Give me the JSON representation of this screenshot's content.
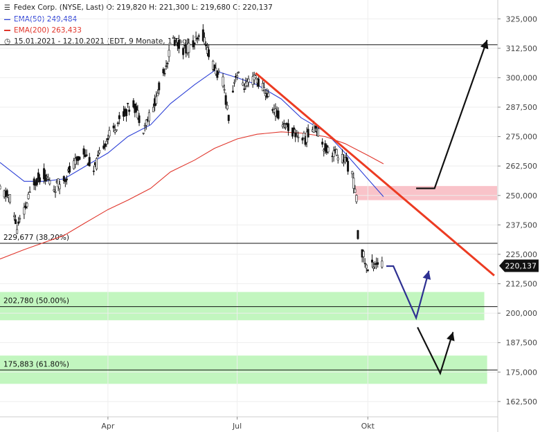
{
  "header": {
    "line1": "Fedex Corp. (NYSE, Last)  O: 219,820  H: 221,300  L: 219,680  C: 220,137",
    "ema50": "EMA(50)  249,484",
    "ema200": "EMA(200)  263,433",
    "period": "15.01.2021 - 12.10.2021   (EDT, 9 Monate, 1 Tag)"
  },
  "colors": {
    "ema50": "#2b3fd6",
    "ema200": "#e0352b",
    "trendline": "#ec3b22",
    "resistance_zone": "#f8b9c0",
    "support_zone": "#b7f5b4",
    "path_blue": "#2e3192",
    "path_black": "#111111"
  },
  "chart_data": {
    "type": "candlestick",
    "title": "Fedex Corp. (NYSE, Last)",
    "ohlc_last": {
      "open": 219.82,
      "high": 221.3,
      "low": 219.68,
      "close": 220.137
    },
    "last_price_label": "220,137",
    "y_ticks": [
      162.5,
      175,
      187.5,
      200,
      212.5,
      225,
      237.5,
      250,
      262.5,
      275,
      287.5,
      300,
      312.5,
      325
    ],
    "y_tick_labels": [
      "162,500",
      "175,000",
      "187,500",
      "200,000",
      "212,500",
      "225,000",
      "237,500",
      "250,000",
      "262,500",
      "275,000",
      "287,500",
      "300,000",
      "312,500",
      "325,000"
    ],
    "ylim": [
      156,
      333
    ],
    "x_ticks": [
      "Apr",
      "Jul",
      "Okt"
    ],
    "x_tick_dates": [
      "2021-04-01",
      "2021-07-01",
      "2021-10-01"
    ],
    "xlim": [
      "2021-01-15",
      "2021-12-31"
    ],
    "price_path": [
      [
        "2021-01-15",
        252
      ],
      [
        "2021-01-22",
        249
      ],
      [
        "2021-01-27",
        236
      ],
      [
        "2021-02-01",
        243
      ],
      [
        "2021-02-08",
        256
      ],
      [
        "2021-02-15",
        259
      ],
      [
        "2021-02-22",
        253
      ],
      [
        "2021-03-01",
        257
      ],
      [
        "2021-03-08",
        263
      ],
      [
        "2021-03-15",
        269
      ],
      [
        "2021-03-22",
        260
      ],
      [
        "2021-03-29",
        272
      ],
      [
        "2021-04-05",
        278
      ],
      [
        "2021-04-12",
        285
      ],
      [
        "2021-04-19",
        289
      ],
      [
        "2021-04-26",
        279
      ],
      [
        "2021-05-03",
        287
      ],
      [
        "2021-05-10",
        302
      ],
      [
        "2021-05-17",
        316
      ],
      [
        "2021-05-24",
        312
      ],
      [
        "2021-05-31",
        314
      ],
      [
        "2021-06-07",
        318
      ],
      [
        "2021-06-14",
        305
      ],
      [
        "2021-06-21",
        298
      ],
      [
        "2021-06-25",
        284
      ],
      [
        "2021-06-30",
        302
      ],
      [
        "2021-07-07",
        296
      ],
      [
        "2021-07-14",
        300
      ],
      [
        "2021-07-21",
        294
      ],
      [
        "2021-07-28",
        285
      ],
      [
        "2021-08-04",
        280
      ],
      [
        "2021-08-11",
        276
      ],
      [
        "2021-08-18",
        274
      ],
      [
        "2021-08-25",
        280
      ],
      [
        "2021-09-01",
        270
      ],
      [
        "2021-09-08",
        268
      ],
      [
        "2021-09-15",
        265
      ],
      [
        "2021-09-20",
        259
      ],
      [
        "2021-09-23",
        248
      ],
      [
        "2021-09-24",
        233
      ],
      [
        "2021-09-28",
        224
      ],
      [
        "2021-10-01",
        218
      ],
      [
        "2021-10-06",
        222
      ],
      [
        "2021-10-12",
        220.137
      ]
    ],
    "series": [
      {
        "name": "EMA(50)",
        "last": 249.484,
        "color": "#2b3fd6",
        "points": [
          [
            "2021-01-15",
            264
          ],
          [
            "2021-02-01",
            256
          ],
          [
            "2021-02-15",
            256
          ],
          [
            "2021-03-01",
            257
          ],
          [
            "2021-03-15",
            262
          ],
          [
            "2021-04-01",
            268
          ],
          [
            "2021-04-15",
            275
          ],
          [
            "2021-05-01",
            280
          ],
          [
            "2021-05-15",
            289
          ],
          [
            "2021-06-01",
            297
          ],
          [
            "2021-06-15",
            303
          ],
          [
            "2021-07-01",
            300
          ],
          [
            "2021-07-15",
            297
          ],
          [
            "2021-08-01",
            291
          ],
          [
            "2021-08-15",
            283
          ],
          [
            "2021-09-01",
            277
          ],
          [
            "2021-09-15",
            268
          ],
          [
            "2021-10-01",
            257
          ],
          [
            "2021-10-12",
            249.484
          ]
        ]
      },
      {
        "name": "EMA(200)",
        "last": 263.433,
        "color": "#e0352b",
        "points": [
          [
            "2021-01-15",
            223
          ],
          [
            "2021-02-01",
            227
          ],
          [
            "2021-02-15",
            230
          ],
          [
            "2021-03-01",
            233
          ],
          [
            "2021-03-15",
            238
          ],
          [
            "2021-04-01",
            244
          ],
          [
            "2021-04-15",
            248
          ],
          [
            "2021-05-01",
            253
          ],
          [
            "2021-05-15",
            260
          ],
          [
            "2021-06-01",
            265
          ],
          [
            "2021-06-15",
            270
          ],
          [
            "2021-07-01",
            274
          ],
          [
            "2021-07-15",
            276
          ],
          [
            "2021-08-01",
            277
          ],
          [
            "2021-08-15",
            276.5
          ],
          [
            "2021-09-01",
            275
          ],
          [
            "2021-09-15",
            272
          ],
          [
            "2021-10-01",
            267
          ],
          [
            "2021-10-12",
            263.433
          ]
        ]
      }
    ],
    "horizontal_lines": [
      {
        "value": 314,
        "label": ""
      },
      {
        "value": 229.677,
        "label": "229,677 (38.20%)"
      },
      {
        "value": 202.78,
        "label": "202,780 (50.00%)"
      },
      {
        "value": 175.883,
        "label": "175,883 (61.80%)"
      }
    ],
    "zones": [
      {
        "kind": "resistance",
        "from": 248,
        "to": 254,
        "start": "2021-09-22",
        "end": "2021-12-31"
      },
      {
        "kind": "support",
        "from": 197,
        "to": 209,
        "start": "2021-01-15",
        "end": "2021-12-22"
      },
      {
        "kind": "support",
        "from": 170,
        "to": 182,
        "start": "2021-01-15",
        "end": "2021-12-24"
      }
    ],
    "trendline": {
      "start": [
        "2021-07-14",
        302
      ],
      "end": [
        "2021-12-29",
        216
      ]
    },
    "scenario_arrows": [
      {
        "color": "#2e3192",
        "points": [
          [
            "2021-10-14",
            220
          ],
          [
            "2021-10-19",
            220
          ],
          [
            "2021-11-04",
            198
          ],
          [
            "2021-11-13",
            218
          ]
        ]
      },
      {
        "color": "#111111",
        "points": [
          [
            "2021-11-05",
            194
          ],
          [
            "2021-11-21",
            174.5
          ],
          [
            "2021-11-30",
            192
          ]
        ]
      },
      {
        "color": "#111111",
        "points": [
          [
            "2021-11-04",
            253
          ],
          [
            "2021-11-17",
            253
          ],
          [
            "2021-12-24",
            316
          ]
        ]
      }
    ]
  }
}
